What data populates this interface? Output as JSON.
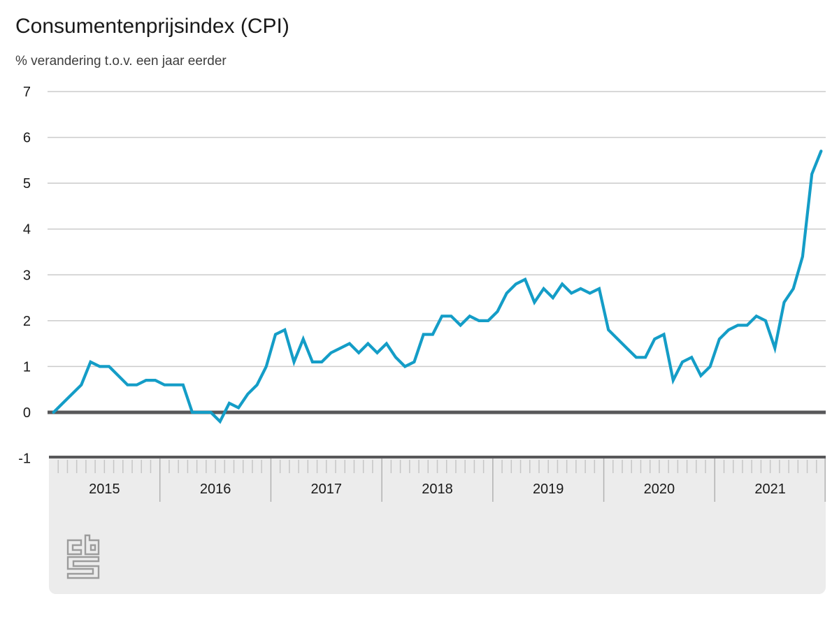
{
  "title": "Consumentenprijsindex (CPI)",
  "subtitle": "% verandering t.o.v. een jaar eerder",
  "footer": {
    "logo": "cbs-logo"
  },
  "chart_data": {
    "type": "line",
    "title": "Consumentenprijsindex (CPI)",
    "subtitle": "% verandering t.o.v. een jaar eerder",
    "unit": "%",
    "frequency": "monthly",
    "first_month": "2015-01",
    "last_month": "2021-12",
    "ylim": [
      -1,
      7
    ],
    "y_ticks": [
      7,
      6,
      5,
      4,
      3,
      2,
      1,
      0,
      -1
    ],
    "grid": "horizontal-gridlines-on",
    "legend": "none",
    "zero_baseline": true,
    "x_years": [
      2015,
      2016,
      2017,
      2018,
      2019,
      2020,
      2021
    ],
    "series": [
      {
        "name": "CPI % verandering t.o.v. een jaar eerder",
        "values_by_year": {
          "2015": [
            0.0,
            0.2,
            0.4,
            0.6,
            1.1,
            1.0,
            1.0,
            0.8,
            0.6,
            0.6,
            0.7,
            0.7
          ],
          "2016": [
            0.6,
            0.6,
            0.6,
            0.0,
            0.0,
            0.0,
            -0.2,
            0.2,
            0.1,
            0.4,
            0.6,
            1.0
          ],
          "2017": [
            1.7,
            1.8,
            1.1,
            1.6,
            1.1,
            1.1,
            1.3,
            1.4,
            1.5,
            1.3,
            1.5,
            1.3
          ],
          "2018": [
            1.5,
            1.2,
            1.0,
            1.1,
            1.7,
            1.7,
            2.1,
            2.1,
            1.9,
            2.1,
            2.0,
            2.0
          ],
          "2019": [
            2.2,
            2.6,
            2.8,
            2.9,
            2.4,
            2.7,
            2.5,
            2.8,
            2.6,
            2.7,
            2.6,
            2.7
          ],
          "2020": [
            1.8,
            1.6,
            1.4,
            1.2,
            1.2,
            1.6,
            1.7,
            0.7,
            1.1,
            1.2,
            0.8,
            1.0
          ],
          "2021": [
            1.6,
            1.8,
            1.9,
            1.9,
            2.1,
            2.0,
            1.4,
            2.4,
            2.7,
            3.4,
            5.2,
            5.7
          ]
        }
      }
    ],
    "colors": {
      "line": "#149dc7",
      "zero_line": "#58585a",
      "gridline": "#cbcbcb",
      "axis_text": "#1a1a1a",
      "band_background": "#ececec",
      "band_top_border": "#58585a",
      "month_tick": "#c6c6c6",
      "year_divider": "#b1b1b1",
      "logo": "#9c9c9c"
    }
  }
}
